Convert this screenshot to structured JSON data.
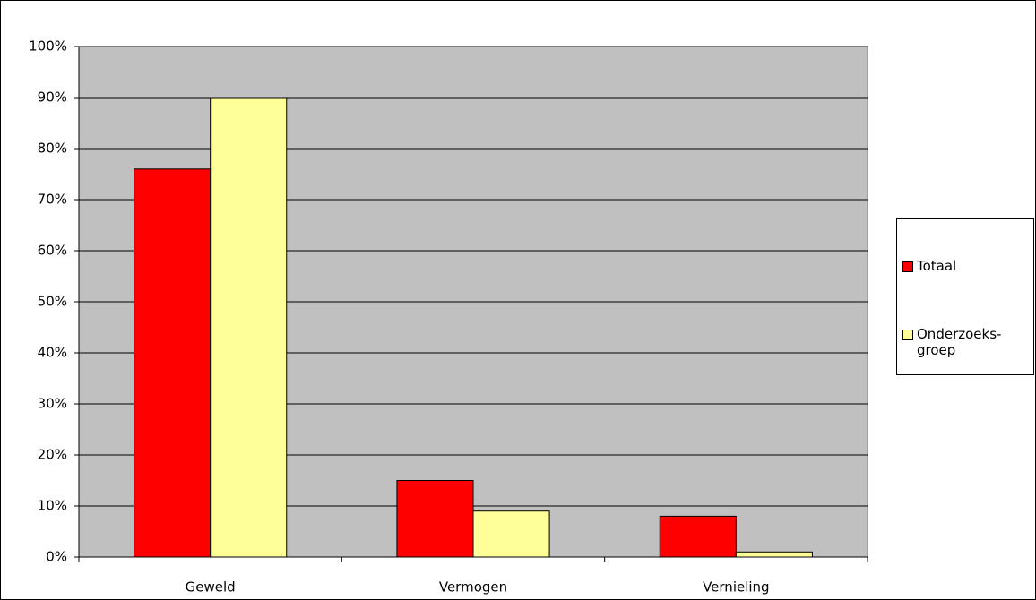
{
  "chart_data": {
    "type": "bar",
    "categories": [
      "Geweld",
      "Vermogen",
      "Vernieling"
    ],
    "series": [
      {
        "name": "Totaal",
        "color": "#ff0000",
        "values": [
          76,
          15,
          8
        ]
      },
      {
        "name": "Onderzoeks-groep",
        "color": "#ffff99",
        "values": [
          90,
          9,
          1
        ]
      }
    ],
    "ylim": [
      0,
      100
    ],
    "yticks": [
      {
        "value": 0,
        "label": "0%"
      },
      {
        "value": 10,
        "label": "10%"
      },
      {
        "value": 20,
        "label": "20%"
      },
      {
        "value": 30,
        "label": "30%"
      },
      {
        "value": 40,
        "label": "40%"
      },
      {
        "value": 50,
        "label": "50%"
      },
      {
        "value": 60,
        "label": "60%"
      },
      {
        "value": 70,
        "label": "70%"
      },
      {
        "value": 80,
        "label": "80%"
      },
      {
        "value": 90,
        "label": "90%"
      },
      {
        "value": 100,
        "label": "100%"
      }
    ],
    "grid": true,
    "legend": "right",
    "plot_background": "#c0c0c0"
  }
}
